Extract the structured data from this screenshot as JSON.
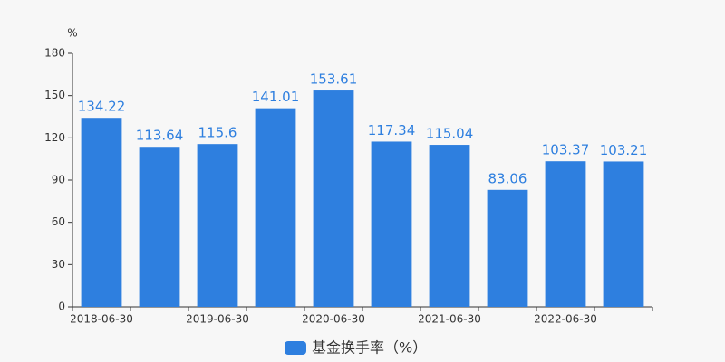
{
  "chart_data": {
    "type": "bar",
    "y_label": "%",
    "categories": [
      "2018-06-30",
      null,
      "2019-06-30",
      null,
      "2020-06-30",
      null,
      "2021-06-30",
      null,
      "2022-06-30",
      null
    ],
    "series": [
      {
        "name": "基金换手率（%）",
        "color": "#2e7fdf",
        "values": [
          134.22,
          113.64,
          115.6,
          141.01,
          153.61,
          117.34,
          115.04,
          83.06,
          103.37,
          103.21
        ]
      }
    ],
    "ylim": [
      0,
      180
    ],
    "yticks": [
      0,
      30,
      60,
      90,
      120,
      150,
      180
    ],
    "grid": false
  }
}
